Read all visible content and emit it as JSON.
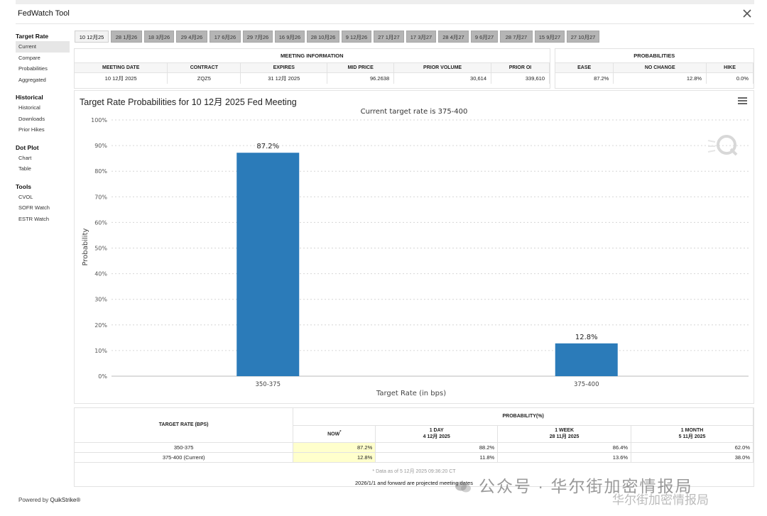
{
  "header": {
    "title": "FedWatch Tool",
    "close_icon": "close-x-icon"
  },
  "sidebar": {
    "sections": [
      {
        "heading": "Target Rate",
        "items": [
          "Current",
          "Compare",
          "Probabilities",
          "Aggregated"
        ]
      },
      {
        "heading": "Historical",
        "items": [
          "Historical",
          "Downloads",
          "Prior Hikes"
        ]
      },
      {
        "heading": "Dot Plot",
        "items": [
          "Chart",
          "Table"
        ]
      },
      {
        "heading": "Tools",
        "items": [
          "CVOL",
          "SOFR Watch",
          "ESTR Watch"
        ]
      }
    ],
    "active_item": "Current"
  },
  "tabs": [
    "10 12月25",
    "28 1月26",
    "18 3月26",
    "29 4月26",
    "17 6月26",
    "29 7月26",
    "16 9月26",
    "28 10月26",
    "9 12月26",
    "27 1月27",
    "17 3月27",
    "28 4月27",
    "9 6月27",
    "28 7月27",
    "15 9月27",
    "27 10月27"
  ],
  "meeting_info": {
    "title": "MEETING INFORMATION",
    "headers": [
      "MEETING DATE",
      "CONTRACT",
      "EXPIRES",
      "MID PRICE",
      "PRIOR VOLUME",
      "PRIOR OI"
    ],
    "values": [
      "10 12月 2025",
      "ZQZ5",
      "31 12月 2025",
      "96.2638",
      "30,614",
      "339,610"
    ]
  },
  "probabilities": {
    "title": "PROBABILITIES",
    "headers": [
      "EASE",
      "NO CHANGE",
      "HIKE"
    ],
    "values": [
      "87.2%",
      "12.8%",
      "0.0%"
    ]
  },
  "chart": {
    "title": "Target Rate Probabilities for 10 12月 2025 Fed Meeting",
    "subtitle": "Current target rate is 375-400",
    "menu_icon": "hamburger-menu-icon",
    "logo": "Q"
  },
  "chart_data": {
    "type": "bar",
    "title": "Target Rate Probabilities for 10 12月 2025 Fed Meeting",
    "subtitle": "Current target rate is 375-400",
    "categories": [
      "350-375",
      "375-400"
    ],
    "values": [
      87.2,
      12.8
    ],
    "data_labels": [
      "87.2%",
      "12.8%"
    ],
    "xlabel": "Target Rate (in bps)",
    "ylabel": "Probability",
    "ylim": [
      0,
      100
    ],
    "yticks": [
      "0%",
      "10%",
      "20%",
      "30%",
      "40%",
      "50%",
      "60%",
      "70%",
      "80%",
      "90%",
      "100%"
    ],
    "grid": true,
    "bar_color": "#2b7bb9"
  },
  "prob_table": {
    "target_header": "TARGET RATE (BPS)",
    "prob_header": "PROBABILITY(%)",
    "col_headers": [
      {
        "line1": "NOW",
        "line2": ""
      },
      {
        "line1": "1 DAY",
        "line2": "4 12月 2025"
      },
      {
        "line1": "1 WEEK",
        "line2": "28 11月 2025"
      },
      {
        "line1": "1 MONTH",
        "line2": "5 11月 2025"
      }
    ],
    "rows": [
      {
        "rate": "350-375",
        "values": [
          "87.2%",
          "88.2%",
          "86.4%",
          "62.0%"
        ]
      },
      {
        "rate": "375-400 (Current)",
        "values": [
          "12.8%",
          "11.8%",
          "13.6%",
          "38.0%"
        ]
      }
    ],
    "footnote": "* Data as of 5 12月 2025 09:36:20 CT",
    "note": "2026/1/1 and forward are projected meeting dates"
  },
  "footer": {
    "powered_prefix": "Powered by",
    "brand": "QuikStrike®"
  },
  "watermark": {
    "text": "公众号 · 华尔街加密情报局",
    "text2": "华尔街加密情报局"
  }
}
